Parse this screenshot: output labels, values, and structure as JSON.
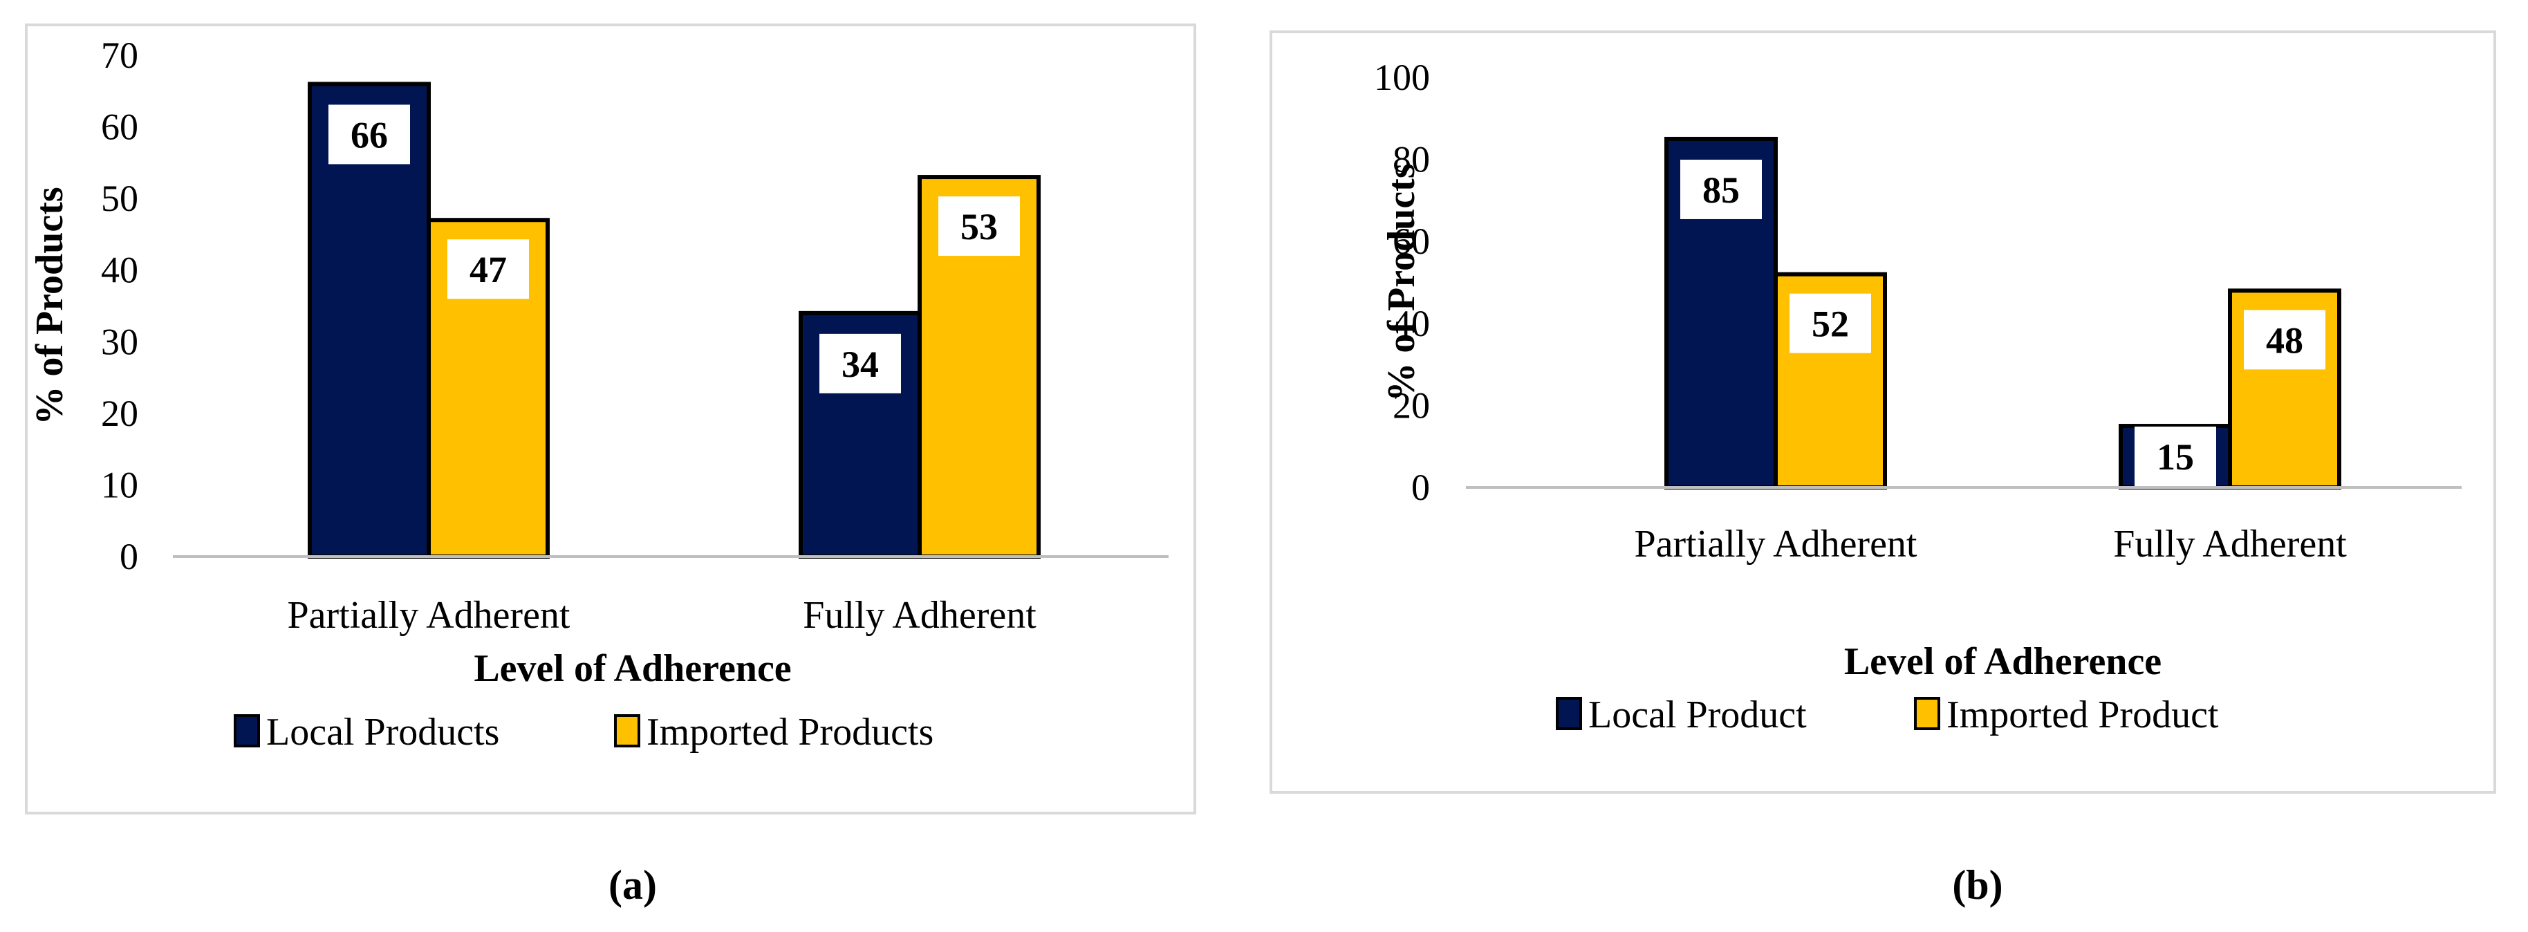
{
  "colors": {
    "series_local": "#011552",
    "series_imported": "#FFC000",
    "bar_outline": "#000000",
    "frame": "#D9D9D9",
    "axis": "#BFBFBF",
    "label_box": "#FFFFFF",
    "text": "#000000"
  },
  "chart_data": [
    {
      "type": "bar",
      "panel_label": "(a)",
      "categories": [
        "Partially Adherent",
        "Fully Adherent"
      ],
      "series": [
        {
          "name": "Local Products",
          "values": [
            66,
            34
          ]
        },
        {
          "name": "Imported Products",
          "values": [
            47,
            53
          ]
        }
      ],
      "xlabel": "Level of Adherence",
      "ylabel": "% of Products",
      "ylim": [
        0,
        70
      ],
      "yticks": [
        0,
        10,
        20,
        30,
        40,
        50,
        60,
        70
      ],
      "legend_position": "bottom",
      "grid": false
    },
    {
      "type": "bar",
      "panel_label": "(b)",
      "categories": [
        "Partially Adherent",
        "Fully Adherent"
      ],
      "series": [
        {
          "name": "Local Product",
          "values": [
            85,
            15
          ]
        },
        {
          "name": "Imported Product",
          "values": [
            52,
            48
          ]
        }
      ],
      "xlabel": "Level of Adherence",
      "ylabel": "% of Products",
      "ylim": [
        0,
        100
      ],
      "yticks": [
        0,
        20,
        40,
        60,
        80,
        100
      ],
      "legend_position": "bottom",
      "grid": false
    }
  ]
}
